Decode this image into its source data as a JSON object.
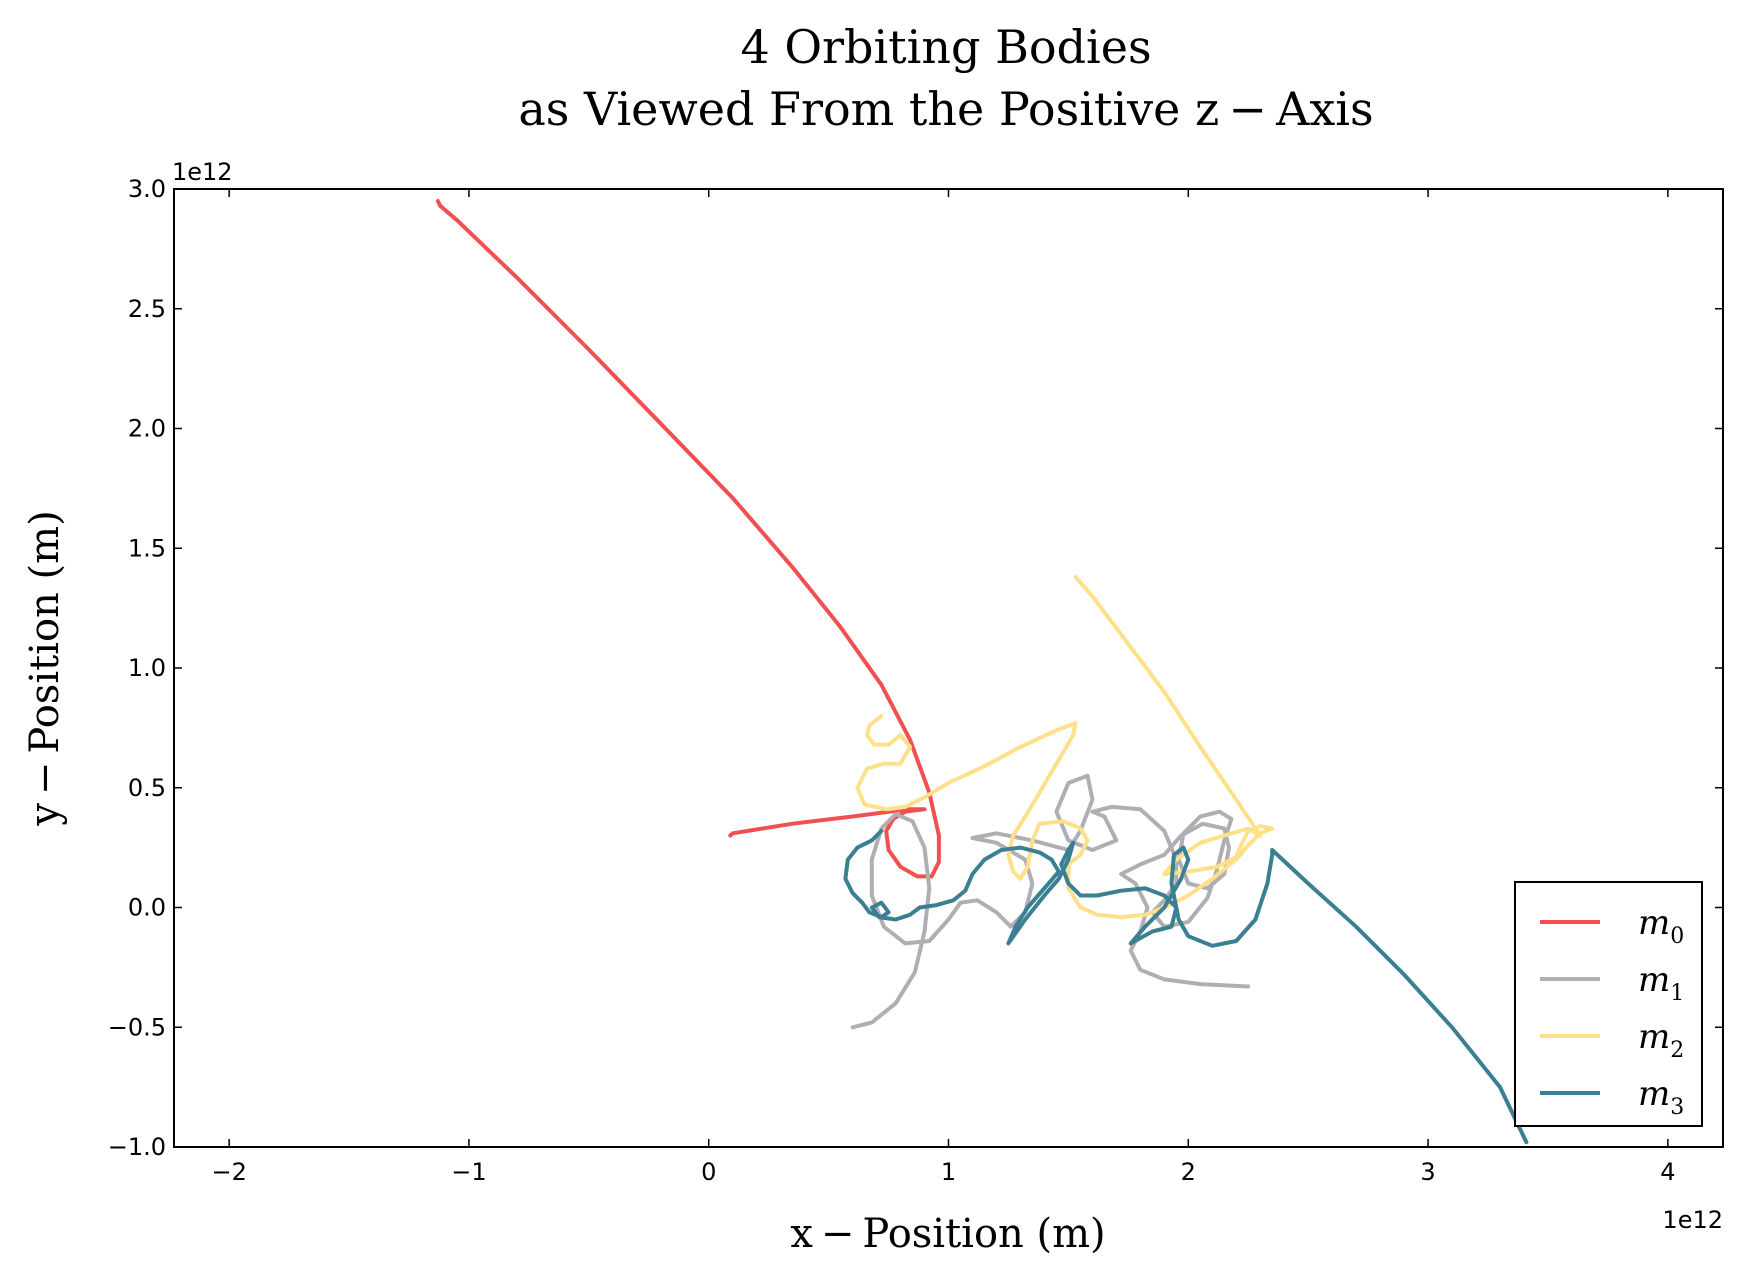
{
  "chart_data": {
    "type": "line",
    "title": [
      "4 Orbiting Bodies",
      "as Viewed From the Positive z − Axis"
    ],
    "xlabel": "x − Position (m)",
    "ylabel": "y − Position (m)",
    "xlim": [
      -2.23,
      4.23
    ],
    "ylim": [
      -1.0,
      3.0
    ],
    "x_ticks": [
      -2,
      -1,
      0,
      1,
      2,
      3,
      4
    ],
    "x_tick_labels": [
      "−2",
      "−1",
      "0",
      "1",
      "2",
      "3",
      "4"
    ],
    "y_ticks": [
      -1.0,
      -0.5,
      0.0,
      0.5,
      1.0,
      1.5,
      2.0,
      2.5,
      3.0
    ],
    "y_tick_labels": [
      "−1.0",
      "−0.5",
      "0.0",
      "0.5",
      "1.0",
      "1.5",
      "2.0",
      "2.5",
      "3.0"
    ],
    "x_offset_label": "1e12",
    "y_offset_label": "1e12",
    "grid": false,
    "legend": {
      "position": "bottom-right"
    },
    "series": [
      {
        "name": "m0",
        "color": "#f05050",
        "points": [
          [
            -1.13,
            2.95
          ],
          [
            -1.12,
            2.93
          ],
          [
            -1.05,
            2.87
          ],
          [
            -0.8,
            2.63
          ],
          [
            -0.5,
            2.33
          ],
          [
            -0.2,
            2.02
          ],
          [
            0.1,
            1.71
          ],
          [
            0.35,
            1.42
          ],
          [
            0.55,
            1.17
          ],
          [
            0.72,
            0.93
          ],
          [
            0.84,
            0.7
          ],
          [
            0.92,
            0.48
          ],
          [
            0.96,
            0.3
          ],
          [
            0.96,
            0.19
          ],
          [
            0.93,
            0.13
          ],
          [
            0.87,
            0.13
          ],
          [
            0.8,
            0.17
          ],
          [
            0.75,
            0.24
          ],
          [
            0.74,
            0.32
          ],
          [
            0.77,
            0.37
          ],
          [
            0.82,
            0.4
          ],
          [
            0.9,
            0.41
          ],
          [
            0.83,
            0.41
          ],
          [
            0.6,
            0.38
          ],
          [
            0.35,
            0.35
          ],
          [
            0.1,
            0.31
          ],
          [
            0.09,
            0.3
          ]
        ]
      },
      {
        "name": "m1",
        "color": "#b0aeb3",
        "points": [
          [
            0.6,
            -0.5
          ],
          [
            0.68,
            -0.48
          ],
          [
            0.78,
            -0.4
          ],
          [
            0.86,
            -0.27
          ],
          [
            0.9,
            -0.1
          ],
          [
            0.92,
            0.08
          ],
          [
            0.9,
            0.25
          ],
          [
            0.85,
            0.36
          ],
          [
            0.78,
            0.39
          ],
          [
            0.72,
            0.33
          ],
          [
            0.68,
            0.2
          ],
          [
            0.68,
            0.05
          ],
          [
            0.73,
            -0.08
          ],
          [
            0.82,
            -0.15
          ],
          [
            0.92,
            -0.14
          ],
          [
            1.0,
            -0.05
          ],
          [
            1.05,
            0.02
          ],
          [
            1.12,
            0.03
          ],
          [
            1.2,
            -0.02
          ],
          [
            1.26,
            -0.08
          ],
          [
            1.32,
            -0.02
          ],
          [
            1.35,
            0.1
          ],
          [
            1.32,
            0.2
          ],
          [
            1.2,
            0.27
          ],
          [
            1.1,
            0.29
          ],
          [
            1.2,
            0.31
          ],
          [
            1.35,
            0.28
          ],
          [
            1.5,
            0.24
          ],
          [
            1.55,
            0.32
          ],
          [
            1.6,
            0.45
          ],
          [
            1.58,
            0.55
          ],
          [
            1.5,
            0.52
          ],
          [
            1.45,
            0.4
          ],
          [
            1.5,
            0.28
          ],
          [
            1.6,
            0.24
          ],
          [
            1.7,
            0.28
          ],
          [
            1.65,
            0.38
          ],
          [
            1.6,
            0.4
          ],
          [
            1.68,
            0.42
          ],
          [
            1.8,
            0.41
          ],
          [
            1.9,
            0.32
          ],
          [
            1.95,
            0.2
          ],
          [
            1.95,
            0.1
          ],
          [
            1.9,
            0.03
          ],
          [
            1.85,
            -0.02
          ],
          [
            1.9,
            -0.08
          ],
          [
            2.0,
            -0.06
          ],
          [
            2.08,
            0.04
          ],
          [
            2.12,
            0.16
          ],
          [
            2.15,
            0.28
          ],
          [
            2.18,
            0.37
          ],
          [
            2.13,
            0.4
          ],
          [
            2.05,
            0.38
          ],
          [
            1.98,
            0.31
          ],
          [
            1.96,
            0.2
          ],
          [
            2.0,
            0.1
          ],
          [
            2.08,
            0.08
          ],
          [
            2.15,
            0.14
          ],
          [
            2.17,
            0.25
          ],
          [
            2.15,
            0.33
          ],
          [
            2.06,
            0.35
          ],
          [
            1.97,
            0.3
          ],
          [
            1.9,
            0.22
          ],
          [
            1.8,
            0.18
          ],
          [
            1.72,
            0.14
          ],
          [
            1.78,
            0.1
          ],
          [
            1.83,
            0.0
          ],
          [
            1.8,
            -0.1
          ],
          [
            1.76,
            -0.18
          ],
          [
            1.8,
            -0.26
          ],
          [
            1.9,
            -0.3
          ],
          [
            2.05,
            -0.32
          ],
          [
            2.25,
            -0.33
          ]
        ]
      },
      {
        "name": "m2",
        "color": "#ffe08a",
        "points": [
          [
            0.72,
            0.8
          ],
          [
            0.67,
            0.76
          ],
          [
            0.66,
            0.72
          ],
          [
            0.69,
            0.68
          ],
          [
            0.75,
            0.68
          ],
          [
            0.8,
            0.72
          ],
          [
            0.84,
            0.67
          ],
          [
            0.8,
            0.6
          ],
          [
            0.73,
            0.6
          ],
          [
            0.66,
            0.58
          ],
          [
            0.62,
            0.5
          ],
          [
            0.65,
            0.43
          ],
          [
            0.74,
            0.41
          ],
          [
            0.82,
            0.42
          ],
          [
            0.9,
            0.46
          ],
          [
            1.0,
            0.52
          ],
          [
            1.15,
            0.59
          ],
          [
            1.3,
            0.67
          ],
          [
            1.45,
            0.74
          ],
          [
            1.53,
            0.77
          ],
          [
            1.52,
            0.72
          ],
          [
            1.45,
            0.6
          ],
          [
            1.38,
            0.48
          ],
          [
            1.32,
            0.38
          ],
          [
            1.27,
            0.3
          ],
          [
            1.25,
            0.22
          ],
          [
            1.27,
            0.15
          ],
          [
            1.3,
            0.12
          ],
          [
            1.33,
            0.17
          ],
          [
            1.35,
            0.28
          ],
          [
            1.38,
            0.35
          ],
          [
            1.48,
            0.36
          ],
          [
            1.55,
            0.33
          ],
          [
            1.58,
            0.28
          ],
          [
            1.55,
            0.22
          ],
          [
            1.5,
            0.18
          ],
          [
            1.5,
            0.08
          ],
          [
            1.55,
            0.0
          ],
          [
            1.62,
            -0.03
          ],
          [
            1.72,
            -0.04
          ],
          [
            1.82,
            -0.03
          ],
          [
            1.9,
            0.0
          ],
          [
            2.0,
            0.05
          ],
          [
            2.1,
            0.12
          ],
          [
            2.2,
            0.2
          ],
          [
            2.25,
            0.26
          ],
          [
            2.3,
            0.31
          ],
          [
            2.35,
            0.33
          ],
          [
            2.3,
            0.34
          ],
          [
            2.25,
            0.32
          ],
          [
            2.22,
            0.26
          ],
          [
            2.2,
            0.21
          ],
          [
            2.12,
            0.17
          ],
          [
            2.0,
            0.15
          ],
          [
            1.9,
            0.14
          ],
          [
            1.95,
            0.2
          ],
          [
            2.05,
            0.27
          ],
          [
            2.15,
            0.3
          ],
          [
            2.25,
            0.33
          ],
          [
            2.3,
            0.3
          ],
          [
            2.2,
            0.45
          ],
          [
            2.05,
            0.67
          ],
          [
            1.9,
            0.9
          ],
          [
            1.75,
            1.1
          ],
          [
            1.6,
            1.3
          ],
          [
            1.53,
            1.38
          ]
        ]
      },
      {
        "name": "m3",
        "color": "#3a7f92",
        "points": [
          [
            0.72,
            0.32
          ],
          [
            0.68,
            0.28
          ],
          [
            0.62,
            0.25
          ],
          [
            0.58,
            0.2
          ],
          [
            0.57,
            0.12
          ],
          [
            0.6,
            0.06
          ],
          [
            0.64,
            0.02
          ],
          [
            0.67,
            -0.02
          ],
          [
            0.72,
            -0.04
          ],
          [
            0.75,
            -0.02
          ],
          [
            0.72,
            0.02
          ],
          [
            0.68,
            0.0
          ],
          [
            0.71,
            -0.04
          ],
          [
            0.78,
            -0.05
          ],
          [
            0.84,
            -0.03
          ],
          [
            0.88,
            0.0
          ],
          [
            0.95,
            0.01
          ],
          [
            1.02,
            0.03
          ],
          [
            1.07,
            0.07
          ],
          [
            1.1,
            0.14
          ],
          [
            1.15,
            0.2
          ],
          [
            1.22,
            0.24
          ],
          [
            1.3,
            0.25
          ],
          [
            1.38,
            0.23
          ],
          [
            1.43,
            0.2
          ],
          [
            1.46,
            0.15
          ],
          [
            1.4,
            0.08
          ],
          [
            1.33,
            0.0
          ],
          [
            1.28,
            -0.08
          ],
          [
            1.25,
            -0.15
          ],
          [
            1.32,
            -0.05
          ],
          [
            1.4,
            0.05
          ],
          [
            1.46,
            0.12
          ],
          [
            1.5,
            0.2
          ],
          [
            1.52,
            0.27
          ],
          [
            1.5,
            0.24
          ],
          [
            1.47,
            0.18
          ],
          [
            1.5,
            0.1
          ],
          [
            1.55,
            0.05
          ],
          [
            1.62,
            0.05
          ],
          [
            1.72,
            0.07
          ],
          [
            1.82,
            0.08
          ],
          [
            1.9,
            0.05
          ],
          [
            1.95,
            0.0
          ],
          [
            1.93,
            -0.08
          ],
          [
            1.85,
            -0.1
          ],
          [
            1.76,
            -0.15
          ],
          [
            1.82,
            -0.08
          ],
          [
            1.9,
            0.0
          ],
          [
            1.97,
            0.12
          ],
          [
            2.0,
            0.2
          ],
          [
            1.98,
            0.25
          ],
          [
            1.94,
            0.22
          ],
          [
            1.93,
            0.1
          ],
          [
            1.96,
            -0.05
          ],
          [
            2.0,
            -0.12
          ],
          [
            2.1,
            -0.16
          ],
          [
            2.2,
            -0.14
          ],
          [
            2.28,
            -0.05
          ],
          [
            2.33,
            0.1
          ],
          [
            2.35,
            0.22
          ],
          [
            2.35,
            0.24
          ],
          [
            2.5,
            0.1
          ],
          [
            2.7,
            -0.08
          ],
          [
            2.9,
            -0.28
          ],
          [
            3.1,
            -0.5
          ],
          [
            3.3,
            -0.75
          ],
          [
            3.41,
            -0.98
          ]
        ]
      }
    ]
  },
  "legend_labels": [
    "m",
    "m",
    "m",
    "m"
  ],
  "legend_subscripts": [
    "0",
    "1",
    "2",
    "3"
  ]
}
